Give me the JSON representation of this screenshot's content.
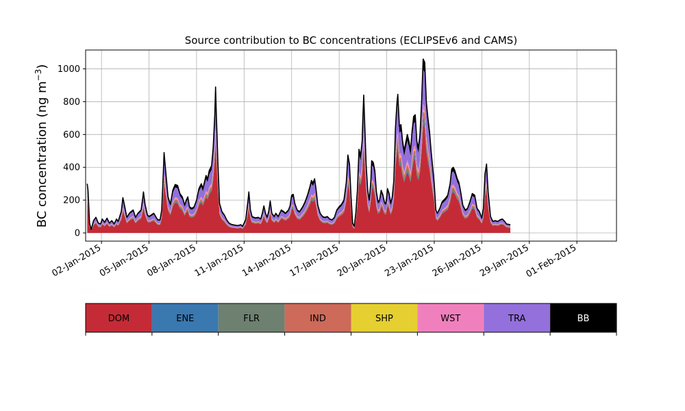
{
  "chart_data": {
    "type": "area",
    "stacked": true,
    "title": "Source contribution to BC concentrations (ECLIPSEv6 and CAMS)",
    "ylabel_main": "BC concentration (ng m",
    "ylabel_sup": "−3",
    "ylabel_end": ")",
    "ylim": [
      -50,
      1115
    ],
    "yticks": [
      0,
      200,
      400,
      600,
      800,
      1000
    ],
    "x_start": "2015-01-01",
    "x_end": "2015-02-01",
    "xlim_days": [
      -1.0,
      32.5
    ],
    "xticks": [
      {
        "day": 0,
        "label": "02-Jan-2015"
      },
      {
        "day": 3,
        "label": "05-Jan-2015"
      },
      {
        "day": 6,
        "label": "08-Jan-2015"
      },
      {
        "day": 9,
        "label": "11-Jan-2015"
      },
      {
        "day": 12,
        "label": "14-Jan-2015"
      },
      {
        "day": 15,
        "label": "17-Jan-2015"
      },
      {
        "day": 18,
        "label": "20-Jan-2015"
      },
      {
        "day": 21,
        "label": "23-Jan-2015"
      },
      {
        "day": 24,
        "label": "26-Jan-2015"
      },
      {
        "day": 27,
        "label": "29-Jan-2015"
      },
      {
        "day": 30,
        "label": "01-Feb-2015"
      }
    ],
    "grid": true,
    "legend_placement": "bottom (colorbar)",
    "series_order": [
      "DOM",
      "ENE",
      "FLR",
      "IND",
      "SHP",
      "WST",
      "TRA",
      "BB"
    ],
    "colors": {
      "DOM": "#c42b36",
      "ENE": "#3a78b0",
      "FLR": "#6e8070",
      "IND": "#cd6a5a",
      "SHP": "#e6cf30",
      "WST": "#f080bd",
      "TRA": "#9370db",
      "BB": "#000000"
    },
    "total_keypoints": [
      [
        -0.9,
        300
      ],
      [
        -0.85,
        260
      ],
      [
        -0.75,
        60
      ],
      [
        -0.65,
        20
      ],
      [
        -0.5,
        75
      ],
      [
        -0.35,
        95
      ],
      [
        -0.2,
        60
      ],
      [
        -0.05,
        55
      ],
      [
        0.05,
        85
      ],
      [
        0.2,
        65
      ],
      [
        0.35,
        90
      ],
      [
        0.5,
        60
      ],
      [
        0.65,
        75
      ],
      [
        0.8,
        55
      ],
      [
        0.95,
        85
      ],
      [
        1.05,
        70
      ],
      [
        1.25,
        130
      ],
      [
        1.35,
        215
      ],
      [
        1.45,
        170
      ],
      [
        1.6,
        95
      ],
      [
        1.8,
        125
      ],
      [
        2.0,
        140
      ],
      [
        2.15,
        95
      ],
      [
        2.3,
        120
      ],
      [
        2.5,
        140
      ],
      [
        2.6,
        210
      ],
      [
        2.65,
        250
      ],
      [
        2.75,
        175
      ],
      [
        2.9,
        110
      ],
      [
        3.0,
        100
      ],
      [
        3.15,
        110
      ],
      [
        3.3,
        120
      ],
      [
        3.45,
        95
      ],
      [
        3.55,
        80
      ],
      [
        3.7,
        80
      ],
      [
        3.8,
        140
      ],
      [
        3.9,
        360
      ],
      [
        3.95,
        490
      ],
      [
        4.05,
        380
      ],
      [
        4.2,
        220
      ],
      [
        4.35,
        175
      ],
      [
        4.5,
        260
      ],
      [
        4.65,
        295
      ],
      [
        4.8,
        290
      ],
      [
        4.95,
        240
      ],
      [
        5.1,
        220
      ],
      [
        5.25,
        170
      ],
      [
        5.35,
        200
      ],
      [
        5.45,
        220
      ],
      [
        5.55,
        160
      ],
      [
        5.7,
        150
      ],
      [
        5.85,
        160
      ],
      [
        6.0,
        200
      ],
      [
        6.15,
        270
      ],
      [
        6.3,
        300
      ],
      [
        6.4,
        270
      ],
      [
        6.5,
        310
      ],
      [
        6.6,
        350
      ],
      [
        6.7,
        330
      ],
      [
        6.8,
        380
      ],
      [
        6.95,
        410
      ],
      [
        7.05,
        520
      ],
      [
        7.15,
        720
      ],
      [
        7.2,
        890
      ],
      [
        7.25,
        720
      ],
      [
        7.35,
        420
      ],
      [
        7.45,
        180
      ],
      [
        7.6,
        130
      ],
      [
        7.75,
        110
      ],
      [
        7.9,
        80
      ],
      [
        8.05,
        60
      ],
      [
        8.2,
        52
      ],
      [
        8.4,
        48
      ],
      [
        8.6,
        45
      ],
      [
        8.8,
        50
      ],
      [
        8.9,
        40
      ],
      [
        9.1,
        80
      ],
      [
        9.25,
        200
      ],
      [
        9.3,
        250
      ],
      [
        9.4,
        140
      ],
      [
        9.5,
        100
      ],
      [
        9.7,
        92
      ],
      [
        9.9,
        95
      ],
      [
        10.05,
        85
      ],
      [
        10.15,
        120
      ],
      [
        10.25,
        165
      ],
      [
        10.35,
        120
      ],
      [
        10.45,
        95
      ],
      [
        10.55,
        130
      ],
      [
        10.65,
        195
      ],
      [
        10.75,
        120
      ],
      [
        10.9,
        100
      ],
      [
        11.0,
        120
      ],
      [
        11.15,
        100
      ],
      [
        11.35,
        140
      ],
      [
        11.5,
        130
      ],
      [
        11.6,
        120
      ],
      [
        11.8,
        140
      ],
      [
        11.9,
        165
      ],
      [
        12.0,
        230
      ],
      [
        12.1,
        235
      ],
      [
        12.2,
        180
      ],
      [
        12.35,
        140
      ],
      [
        12.5,
        130
      ],
      [
        12.7,
        160
      ],
      [
        12.85,
        190
      ],
      [
        13.0,
        230
      ],
      [
        13.15,
        280
      ],
      [
        13.25,
        320
      ],
      [
        13.35,
        305
      ],
      [
        13.45,
        330
      ],
      [
        13.55,
        260
      ],
      [
        13.65,
        170
      ],
      [
        13.8,
        120
      ],
      [
        13.95,
        100
      ],
      [
        14.1,
        95
      ],
      [
        14.25,
        100
      ],
      [
        14.4,
        85
      ],
      [
        14.55,
        80
      ],
      [
        14.7,
        95
      ],
      [
        14.85,
        140
      ],
      [
        15.0,
        160
      ],
      [
        15.15,
        175
      ],
      [
        15.3,
        200
      ],
      [
        15.45,
        310
      ],
      [
        15.55,
        475
      ],
      [
        15.65,
        420
      ],
      [
        15.75,
        220
      ],
      [
        15.85,
        60
      ],
      [
        15.95,
        40
      ],
      [
        16.05,
        120
      ],
      [
        16.15,
        260
      ],
      [
        16.25,
        510
      ],
      [
        16.35,
        470
      ],
      [
        16.45,
        560
      ],
      [
        16.5,
        720
      ],
      [
        16.55,
        840
      ],
      [
        16.6,
        700
      ],
      [
        16.7,
        420
      ],
      [
        16.8,
        260
      ],
      [
        16.9,
        200
      ],
      [
        17.0,
        320
      ],
      [
        17.05,
        440
      ],
      [
        17.15,
        430
      ],
      [
        17.25,
        380
      ],
      [
        17.35,
        250
      ],
      [
        17.45,
        190
      ],
      [
        17.55,
        200
      ],
      [
        17.65,
        260
      ],
      [
        17.75,
        235
      ],
      [
        17.85,
        190
      ],
      [
        17.95,
        180
      ],
      [
        18.05,
        270
      ],
      [
        18.15,
        240
      ],
      [
        18.25,
        180
      ],
      [
        18.35,
        220
      ],
      [
        18.45,
        320
      ],
      [
        18.55,
        640
      ],
      [
        18.65,
        800
      ],
      [
        18.7,
        845
      ],
      [
        18.8,
        650
      ],
      [
        18.9,
        660
      ],
      [
        19.0,
        560
      ],
      [
        19.1,
        500
      ],
      [
        19.2,
        550
      ],
      [
        19.3,
        600
      ],
      [
        19.4,
        560
      ],
      [
        19.5,
        500
      ],
      [
        19.6,
        620
      ],
      [
        19.7,
        710
      ],
      [
        19.8,
        720
      ],
      [
        19.9,
        560
      ],
      [
        20.0,
        520
      ],
      [
        20.1,
        600
      ],
      [
        20.2,
        800
      ],
      [
        20.3,
        1060
      ],
      [
        20.4,
        1040
      ],
      [
        20.5,
        800
      ],
      [
        20.6,
        700
      ],
      [
        20.7,
        620
      ],
      [
        20.8,
        500
      ],
      [
        20.9,
        400
      ],
      [
        21.0,
        300
      ],
      [
        21.1,
        140
      ],
      [
        21.2,
        120
      ],
      [
        21.35,
        150
      ],
      [
        21.5,
        190
      ],
      [
        21.7,
        210
      ],
      [
        21.85,
        230
      ],
      [
        22.0,
        300
      ],
      [
        22.1,
        390
      ],
      [
        22.2,
        400
      ],
      [
        22.3,
        380
      ],
      [
        22.45,
        330
      ],
      [
        22.55,
        310
      ],
      [
        22.65,
        260
      ],
      [
        22.8,
        170
      ],
      [
        22.95,
        140
      ],
      [
        23.1,
        150
      ],
      [
        23.25,
        190
      ],
      [
        23.4,
        240
      ],
      [
        23.55,
        230
      ],
      [
        23.7,
        150
      ],
      [
        23.85,
        130
      ],
      [
        24.0,
        90
      ],
      [
        24.1,
        150
      ],
      [
        24.2,
        360
      ],
      [
        24.3,
        420
      ],
      [
        24.4,
        250
      ],
      [
        24.55,
        100
      ],
      [
        24.7,
        70
      ],
      [
        24.85,
        75
      ],
      [
        25.0,
        70
      ],
      [
        25.15,
        80
      ],
      [
        25.3,
        85
      ],
      [
        25.45,
        70
      ],
      [
        25.55,
        55
      ],
      [
        25.7,
        52
      ],
      [
        25.8,
        50
      ]
    ]
  },
  "legend": {
    "items": [
      {
        "key": "DOM",
        "label": "DOM",
        "text_color": "#000000"
      },
      {
        "key": "ENE",
        "label": "ENE",
        "text_color": "#000000"
      },
      {
        "key": "FLR",
        "label": "FLR",
        "text_color": "#000000"
      },
      {
        "key": "IND",
        "label": "IND",
        "text_color": "#000000"
      },
      {
        "key": "SHP",
        "label": "SHP",
        "text_color": "#000000"
      },
      {
        "key": "WST",
        "label": "WST",
        "text_color": "#000000"
      },
      {
        "key": "TRA",
        "label": "TRA",
        "text_color": "#000000"
      },
      {
        "key": "BB",
        "label": "BB",
        "text_color": "#ffffff"
      }
    ]
  }
}
